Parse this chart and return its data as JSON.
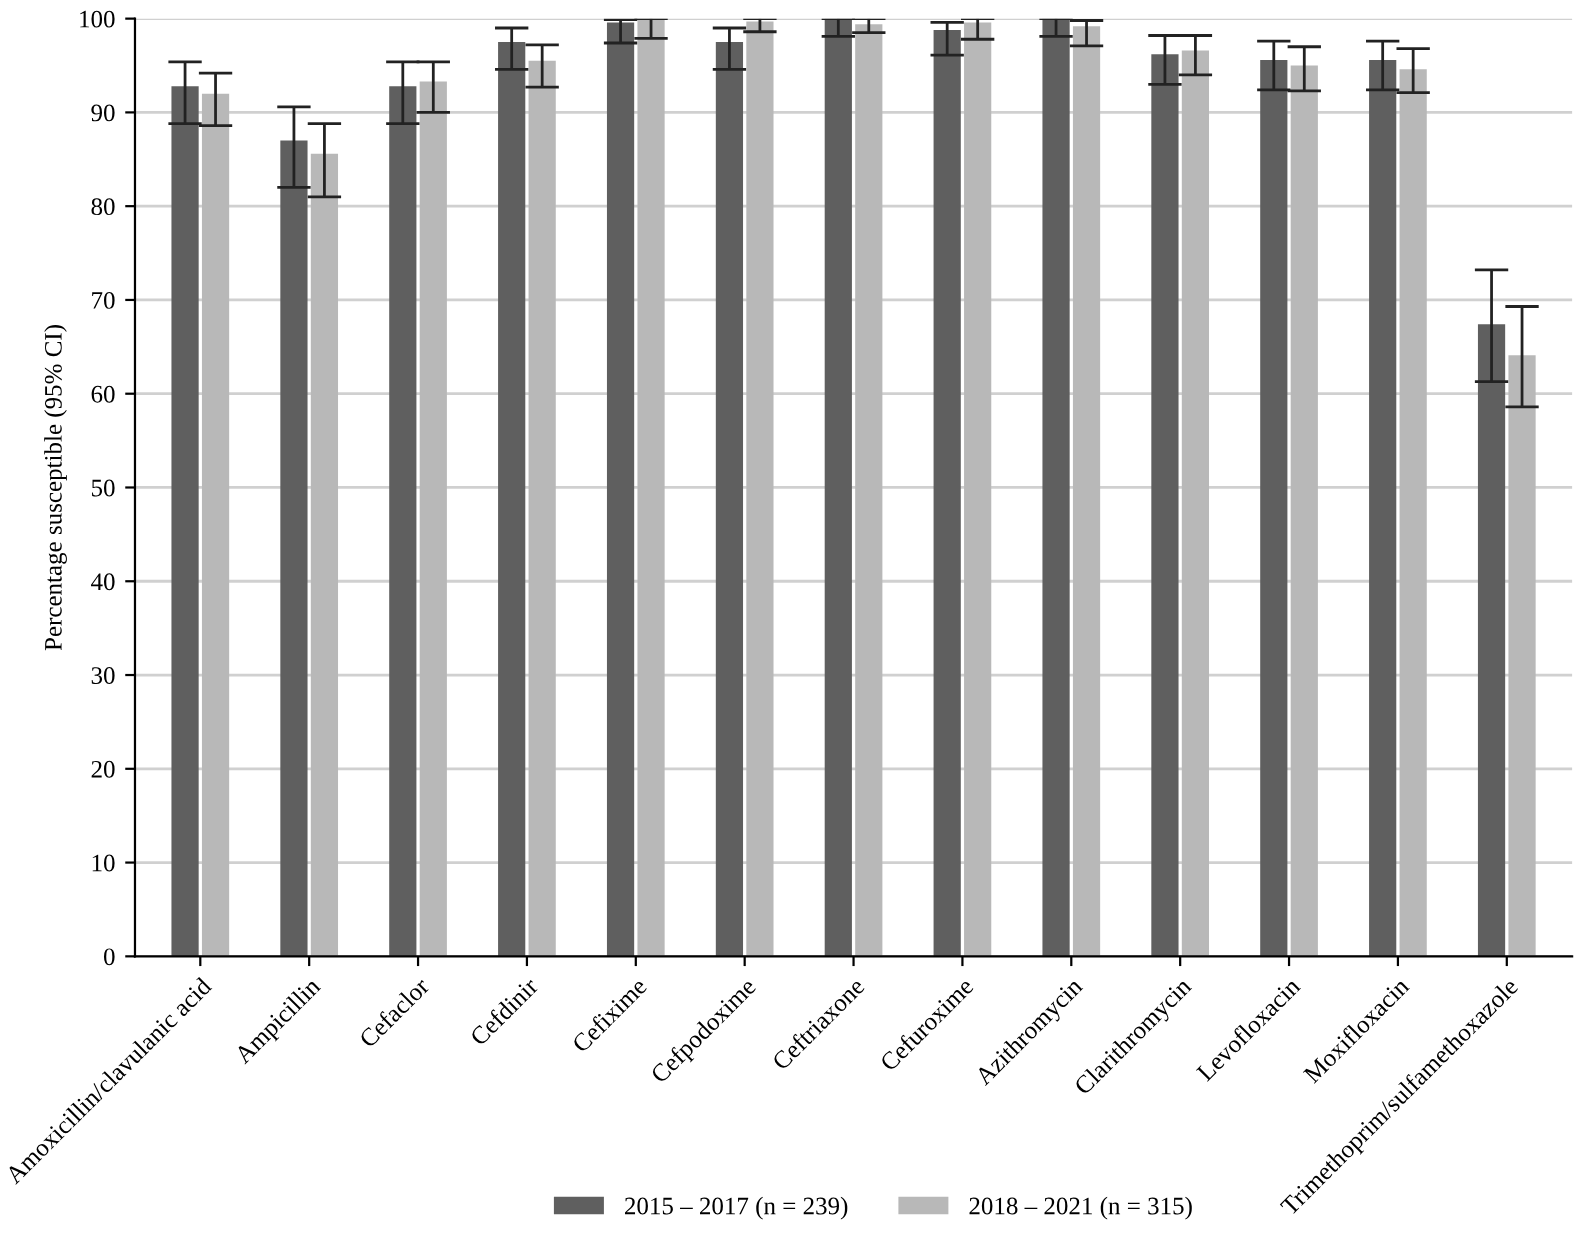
{
  "chart_data": {
    "type": "bar",
    "ylabel": "Percentage susceptible (95% CI)",
    "categories": [
      "Amoxicillin/clavulanic acid",
      "Ampicillin",
      "Cefaclor",
      "Cefdinir",
      "Cefixime",
      "Cefpodoxime",
      "Ceftriaxone",
      "Cefuroxime",
      "Azithromycin",
      "Clarithromycin",
      "Levofloxacin",
      "Moxifloxacin",
      "Trimethoprim/sulfamethoxazole"
    ],
    "series": [
      {
        "name": "2015 – 2017 (n = 239)",
        "color": "#5f5f5f",
        "values": [
          92.8,
          87.0,
          92.8,
          97.5,
          99.6,
          97.5,
          100,
          98.8,
          100,
          96.2,
          95.6,
          95.6,
          67.4
        ],
        "errors": [
          [
            88.8,
            95.4
          ],
          [
            82.0,
            90.6
          ],
          [
            88.8,
            95.4
          ],
          [
            94.6,
            99.0
          ],
          [
            97.4,
            99.9
          ],
          [
            94.6,
            99.0
          ],
          [
            98.1,
            100
          ],
          [
            96.1,
            99.6
          ],
          [
            98.1,
            100
          ],
          [
            93.0,
            98.2
          ],
          [
            92.4,
            97.6
          ],
          [
            92.4,
            97.6
          ],
          [
            61.3,
            73.2
          ]
        ]
      },
      {
        "name": "2018 – 2021 (n = 315)",
        "color": "#b8b8b8",
        "values": [
          92.0,
          85.6,
          93.3,
          95.5,
          100,
          99.7,
          99.4,
          99.6,
          99.2,
          96.6,
          95.0,
          94.6,
          64.1
        ],
        "errors": [
          [
            88.6,
            94.2
          ],
          [
            81.0,
            88.8
          ],
          [
            90.0,
            95.4
          ],
          [
            92.7,
            97.2
          ],
          [
            97.9,
            100
          ],
          [
            98.6,
            100
          ],
          [
            98.5,
            100
          ],
          [
            97.8,
            100
          ],
          [
            97.1,
            99.8
          ],
          [
            94.0,
            98.2
          ],
          [
            92.3,
            97.0
          ],
          [
            92.1,
            96.8
          ],
          [
            58.6,
            69.3
          ]
        ]
      }
    ],
    "ylim": [
      0,
      100
    ],
    "yticks": [
      0,
      10,
      20,
      30,
      40,
      50,
      60,
      70,
      80,
      90,
      100
    ],
    "grid": "y",
    "legend": "bottom"
  }
}
